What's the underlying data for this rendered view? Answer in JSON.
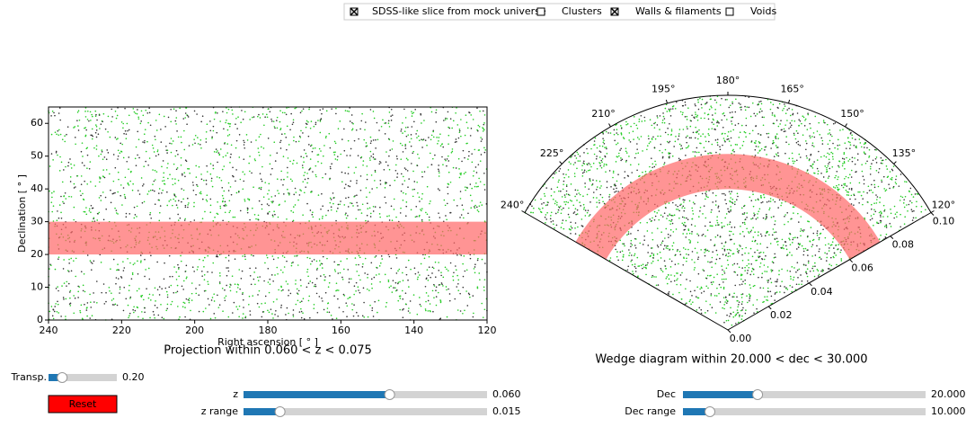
{
  "checkboxes": [
    {
      "label": "SDSS-like slice from mock universe",
      "checked": true,
      "color": "#000000"
    },
    {
      "label": "Clusters",
      "checked": false,
      "color": "#ff0000"
    },
    {
      "label": "Walls & filaments",
      "checked": true,
      "color": "#00ee00"
    },
    {
      "label": "Voids",
      "checked": false,
      "color": "#0000ff"
    }
  ],
  "projection": {
    "title": "Projection within 0.060 < z < 0.075",
    "xlabel": "Right ascension [ ° ]",
    "ylabel": "Declination [ ° ]",
    "xlim": [
      240,
      120
    ],
    "xticks": [
      240,
      220,
      200,
      180,
      160,
      140,
      120
    ],
    "ylim": [
      0,
      65
    ],
    "yticks": [
      0,
      10,
      20,
      30,
      40,
      50,
      60
    ],
    "band": [
      20,
      30
    ]
  },
  "wedge": {
    "title": "Wedge diagram within 20.000 < dec < 30.000",
    "thetalim": [
      120,
      240
    ],
    "rlim": [
      0,
      0.1
    ],
    "thetaticks": [
      {
        "value": 240,
        "label": "240°"
      },
      {
        "value": 225,
        "label": "225°"
      },
      {
        "value": 210,
        "label": "210°"
      },
      {
        "value": 195,
        "label": "195°"
      },
      {
        "value": 180,
        "label": "180°"
      },
      {
        "value": 165,
        "label": "165°"
      },
      {
        "value": 150,
        "label": "150°"
      },
      {
        "value": 135,
        "label": "135°"
      },
      {
        "value": 120,
        "label": "120°"
      }
    ],
    "rticks": [
      {
        "value": 0,
        "label": "0.00"
      },
      {
        "value": 0.02,
        "label": "0.02"
      },
      {
        "value": 0.04,
        "label": "0.04"
      },
      {
        "value": 0.06,
        "label": "0.06"
      },
      {
        "value": 0.08,
        "label": "0.08"
      },
      {
        "value": 0.1,
        "label": "0.10"
      }
    ],
    "band": [
      0.06,
      0.075
    ]
  },
  "sliders": [
    {
      "label": "Transp.",
      "value": 0.2,
      "value_label": "0.20",
      "range": [
        0,
        1
      ]
    },
    {
      "label": "z",
      "value": 0.06,
      "value_label": "0.060",
      "range": [
        0,
        0.1
      ]
    },
    {
      "label": "z range",
      "value": 0.015,
      "value_label": "0.015",
      "range": [
        0,
        0.1
      ]
    },
    {
      "label": "Dec",
      "value": 20,
      "value_label": "20.000",
      "range": [
        0,
        65
      ]
    },
    {
      "label": "Dec range",
      "value": 10,
      "value_label": "10.000",
      "range": [
        0,
        90
      ]
    }
  ],
  "button": "Reset"
}
